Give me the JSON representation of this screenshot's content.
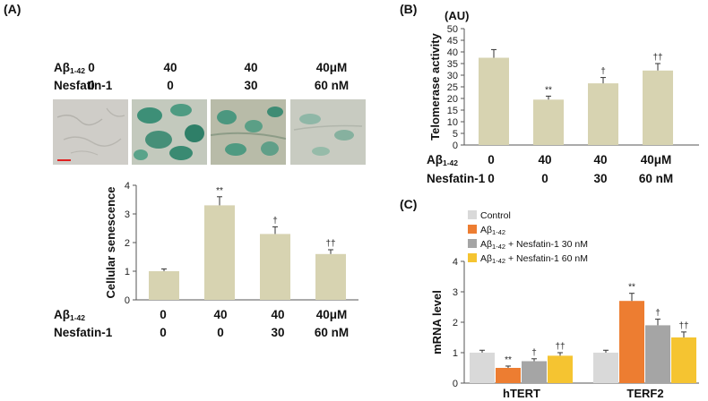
{
  "panels": {
    "a_label": "(A)",
    "b_label": "(B)",
    "c_label": "(C)"
  },
  "treatment_rows": {
    "abeta_main": "Aβ",
    "abeta_sub": "1-42",
    "nesfatin": "Nesfatin-1"
  },
  "panel_a": {
    "top_abeta_values": [
      "0",
      "40",
      "40",
      "40μM"
    ],
    "top_nesfatin_values": [
      "0",
      "0",
      "30",
      "60 nM"
    ],
    "bottom_abeta_values": [
      "0",
      "40",
      "40",
      "40μM"
    ],
    "bottom_nesfatin_values": [
      "0",
      "0",
      "30",
      "60 nM"
    ],
    "micrographs": [
      "control",
      "abeta",
      "abeta-nesfatin-30",
      "abeta-nesfatin-60"
    ]
  },
  "panel_b": {
    "abeta_values": [
      "0",
      "40",
      "40",
      "40μM"
    ],
    "nesfatin_values": [
      "0",
      "0",
      "30",
      "60 nM"
    ]
  },
  "colors": {
    "bar": "#d7d3b1",
    "control": "#d9d9d9",
    "abeta": "#ed7d31",
    "nes30": "#a5a5a5",
    "nes60": "#f5c431"
  },
  "chart_data": [
    {
      "id": "senescence",
      "type": "bar",
      "ylabel": "Cellular senescence",
      "ylim": [
        0,
        4
      ],
      "yticks": [
        "0",
        "1",
        "2",
        "3",
        "4"
      ],
      "categories": [
        "0/0",
        "40/0",
        "40/30",
        "40/60"
      ],
      "values": [
        1.0,
        3.3,
        2.3,
        1.6
      ],
      "errors": [
        0.08,
        0.3,
        0.25,
        0.15
      ],
      "annotations": [
        "",
        "**",
        "†",
        "††"
      ]
    },
    {
      "id": "telomerase",
      "type": "bar",
      "unit_label": "(AU)",
      "ylabel": "Telomerase activity",
      "ylim": [
        0,
        50
      ],
      "yticks": [
        "0",
        "5",
        "10",
        "15",
        "20",
        "25",
        "30",
        "35",
        "40",
        "45",
        "50"
      ],
      "categories": [
        "0/0",
        "40/0",
        "40/30",
        "40/60"
      ],
      "values": [
        37.5,
        19.5,
        26.5,
        32.0
      ],
      "errors": [
        3.5,
        1.5,
        2.5,
        3.0
      ],
      "annotations": [
        "",
        "**",
        "†",
        "††"
      ]
    },
    {
      "id": "mrna",
      "type": "bar",
      "ylabel": "mRNA level",
      "ylim": [
        0,
        4
      ],
      "yticks": [
        "0",
        "1",
        "2",
        "3",
        "4"
      ],
      "categories": [
        "hTERT",
        "TERF2"
      ],
      "legend": [
        {
          "main": "Control",
          "sub": "",
          "suffix": ""
        },
        {
          "main": "Aβ",
          "sub": "1-42",
          "suffix": ""
        },
        {
          "main": "Aβ",
          "sub": "1-42",
          "suffix": " + Nesfatin-1 30 nM"
        },
        {
          "main": "Aβ",
          "sub": "1-42",
          "suffix": " + Nesfatin-1 60 nM"
        }
      ],
      "series": [
        {
          "name": "Control",
          "values": [
            1.0,
            1.0
          ],
          "errors": [
            0.08,
            0.08
          ],
          "annotations": [
            "",
            ""
          ]
        },
        {
          "name": "Aβ1-42",
          "values": [
            0.5,
            2.7
          ],
          "errors": [
            0.06,
            0.25
          ],
          "annotations": [
            "**",
            "**"
          ]
        },
        {
          "name": "Aβ1-42 + Nesfatin-1 30 nM",
          "values": [
            0.72,
            1.9
          ],
          "errors": [
            0.08,
            0.2
          ],
          "annotations": [
            "†",
            "†"
          ]
        },
        {
          "name": "Aβ1-42 + Nesfatin-1 60 nM",
          "values": [
            0.9,
            1.5
          ],
          "errors": [
            0.1,
            0.18
          ],
          "annotations": [
            "††",
            "††"
          ]
        }
      ]
    }
  ]
}
